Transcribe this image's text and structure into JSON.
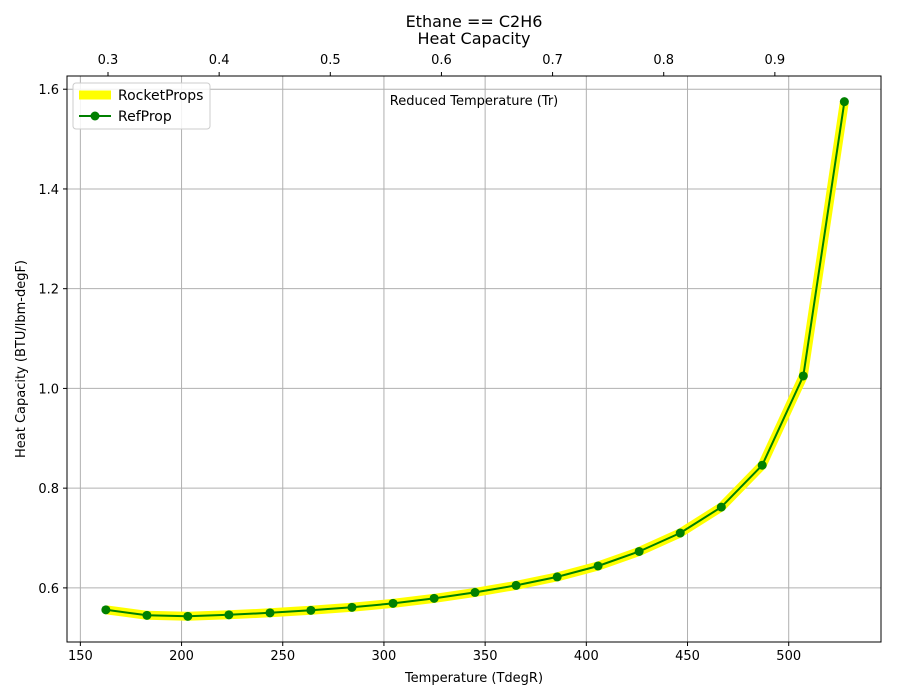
{
  "chart_data": {
    "type": "line",
    "title": [
      "Ethane == C2H6",
      "Heat Capacity"
    ],
    "xlabel": "Temperature (TdegR)",
    "ylabel": "Heat Capacity (BTU/lbm-degF)",
    "x2label": "Reduced Temperature (Tr)",
    "xlim": [
      143.4,
      545.6
    ],
    "ylim": [
      0.4915,
      1.6265
    ],
    "x2lim": [
      0.2631,
      0.9955
    ],
    "xticks": [
      150,
      200,
      250,
      300,
      350,
      400,
      450,
      500
    ],
    "yticks": [
      0.6,
      0.8,
      1.0,
      1.2,
      1.4,
      1.6
    ],
    "x2ticks": [
      0.3,
      0.4,
      0.5,
      0.6,
      0.7,
      0.8,
      0.9
    ],
    "grid": true,
    "legend_position": "top-left",
    "x": [
      162.6,
      182.9,
      203.1,
      223.4,
      243.7,
      263.9,
      284.2,
      304.5,
      324.8,
      345.0,
      365.3,
      385.6,
      405.8,
      426.1,
      446.4,
      466.7,
      486.9,
      507.2,
      527.5
    ],
    "series": [
      {
        "name": "RocketProps",
        "color": "#ffff00",
        "style": "thick-line",
        "values": [
          0.556,
          0.545,
          0.543,
          0.546,
          0.55,
          0.555,
          0.561,
          0.569,
          0.579,
          0.591,
          0.605,
          0.622,
          0.644,
          0.673,
          0.71,
          0.762,
          0.846,
          1.025,
          1.575
        ]
      },
      {
        "name": "RefProp",
        "color": "#008000",
        "style": "line-with-markers",
        "values": [
          0.556,
          0.545,
          0.543,
          0.546,
          0.55,
          0.555,
          0.561,
          0.569,
          0.579,
          0.591,
          0.605,
          0.622,
          0.644,
          0.673,
          0.71,
          0.762,
          0.846,
          1.025,
          1.575
        ]
      }
    ]
  }
}
